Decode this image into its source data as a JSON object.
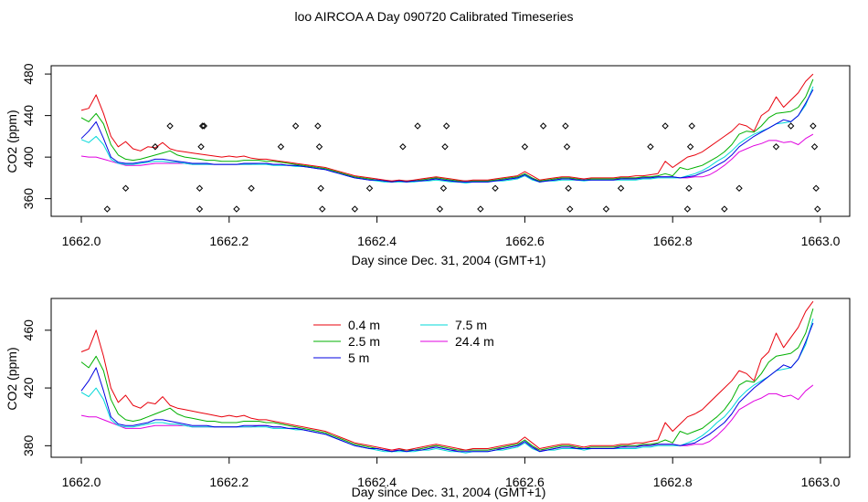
{
  "title": "loo AIRCOA A  Day 090720  Calibrated Timeseries",
  "chart_data": [
    {
      "type": "line",
      "xlabel": "Day since Dec. 31, 2004 (GMT+1)",
      "ylabel": "CO2 (ppm)",
      "xlim": [
        1662.0,
        1663.0
      ],
      "ylim": [
        343,
        488
      ],
      "xticks": [
        "1662.0",
        "1662.2",
        "1662.4",
        "1662.6",
        "1662.8",
        "1663.0"
      ],
      "yticks": [
        "360",
        "400",
        "440",
        "480"
      ],
      "series_ref": "shared",
      "diamond_markers": {
        "name": "",
        "x": [
          1662.035,
          1662.06,
          1662.1,
          1662.12,
          1662.16,
          1662.16,
          1662.162,
          1662.164,
          1662.166,
          1662.21,
          1662.23,
          1662.27,
          1662.29,
          1662.32,
          1662.322,
          1662.324,
          1662.326,
          1662.37,
          1662.39,
          1662.435,
          1662.455,
          1662.485,
          1662.49,
          1662.492,
          1662.494,
          1662.54,
          1662.56,
          1662.6,
          1662.625,
          1662.655,
          1662.657,
          1662.659,
          1662.661,
          1662.71,
          1662.73,
          1662.77,
          1662.79,
          1662.82,
          1662.822,
          1662.824,
          1662.826,
          1662.87,
          1662.89,
          1662.94,
          1662.96,
          1662.99,
          1662.992,
          1662.994,
          1662.996
        ],
        "y": [
          350,
          370,
          410,
          430,
          350,
          370,
          410,
          430,
          430,
          350,
          370,
          410,
          430,
          430,
          410,
          370,
          350,
          350,
          370,
          410,
          430,
          350,
          370,
          410,
          430,
          350,
          370,
          410,
          430,
          430,
          410,
          370,
          350,
          350,
          370,
          410,
          430,
          350,
          370,
          410,
          430,
          350,
          370,
          410,
          430,
          430,
          410,
          370,
          350
        ]
      }
    },
    {
      "type": "line",
      "xlabel": "Day since Dec. 31, 2004 (GMT+1)",
      "ylabel": "CO2 (ppm)",
      "xlim": [
        1662.0,
        1663.0
      ],
      "ylim": [
        372,
        482
      ],
      "xticks": [
        "1662.0",
        "1662.2",
        "1662.4",
        "1662.6",
        "1662.8",
        "1663.0"
      ],
      "yticks": [
        "380",
        "420",
        "460"
      ],
      "legend_placement": "top-center",
      "series_ref": "shared"
    }
  ],
  "series": [
    {
      "name": "0.4 m",
      "color": "#e8000b",
      "x": [
        1662.0,
        1662.01,
        1662.02,
        1662.03,
        1662.04,
        1662.05,
        1662.06,
        1662.07,
        1662.08,
        1662.09,
        1662.1,
        1662.11,
        1662.12,
        1662.13,
        1662.14,
        1662.15,
        1662.16,
        1662.17,
        1662.18,
        1662.19,
        1662.2,
        1662.21,
        1662.22,
        1662.23,
        1662.24,
        1662.25,
        1662.26,
        1662.27,
        1662.28,
        1662.29,
        1662.3,
        1662.31,
        1662.32,
        1662.33,
        1662.34,
        1662.35,
        1662.36,
        1662.37,
        1662.38,
        1662.39,
        1662.4,
        1662.41,
        1662.42,
        1662.43,
        1662.44,
        1662.45,
        1662.46,
        1662.47,
        1662.48,
        1662.49,
        1662.5,
        1662.51,
        1662.52,
        1662.53,
        1662.54,
        1662.55,
        1662.56,
        1662.57,
        1662.58,
        1662.59,
        1662.6,
        1662.61,
        1662.62,
        1662.63,
        1662.64,
        1662.65,
        1662.66,
        1662.67,
        1662.68,
        1662.69,
        1662.7,
        1662.71,
        1662.72,
        1662.73,
        1662.74,
        1662.75,
        1662.76,
        1662.77,
        1662.78,
        1662.79,
        1662.8,
        1662.81,
        1662.82,
        1662.83,
        1662.84,
        1662.85,
        1662.86,
        1662.87,
        1662.88,
        1662.89,
        1662.9,
        1662.91,
        1662.92,
        1662.93,
        1662.94,
        1662.95,
        1662.96,
        1662.97,
        1662.98,
        1662.99
      ],
      "y": [
        445,
        447,
        460,
        442,
        420,
        410,
        415,
        408,
        406,
        410,
        409,
        414,
        408,
        406,
        405,
        404,
        403,
        402,
        401,
        400,
        401,
        400,
        401,
        399,
        398,
        398,
        397,
        396,
        395,
        394,
        393,
        392,
        391,
        390,
        388,
        386,
        384,
        382,
        381,
        380,
        379,
        378,
        377,
        378,
        377,
        378,
        379,
        380,
        381,
        380,
        379,
        378,
        377,
        378,
        378,
        378,
        379,
        380,
        381,
        382,
        386,
        382,
        378,
        379,
        380,
        381,
        381,
        380,
        379,
        380,
        380,
        380,
        380,
        381,
        381,
        382,
        382,
        383,
        384,
        396,
        390,
        395,
        400,
        402,
        405,
        410,
        415,
        420,
        425,
        432,
        430,
        425,
        440,
        445,
        458,
        448,
        455,
        462,
        473,
        480
      ]
    },
    {
      "name": "2.5 m",
      "color": "#00b000",
      "x": [
        1662.0,
        1662.01,
        1662.02,
        1662.03,
        1662.04,
        1662.05,
        1662.06,
        1662.07,
        1662.08,
        1662.09,
        1662.1,
        1662.11,
        1662.12,
        1662.13,
        1662.14,
        1662.15,
        1662.16,
        1662.17,
        1662.18,
        1662.19,
        1662.2,
        1662.21,
        1662.22,
        1662.23,
        1662.24,
        1662.25,
        1662.26,
        1662.27,
        1662.28,
        1662.29,
        1662.3,
        1662.31,
        1662.32,
        1662.33,
        1662.34,
        1662.35,
        1662.36,
        1662.37,
        1662.38,
        1662.39,
        1662.4,
        1662.41,
        1662.42,
        1662.43,
        1662.44,
        1662.45,
        1662.46,
        1662.47,
        1662.48,
        1662.49,
        1662.5,
        1662.51,
        1662.52,
        1662.53,
        1662.54,
        1662.55,
        1662.56,
        1662.57,
        1662.58,
        1662.59,
        1662.6,
        1662.61,
        1662.62,
        1662.63,
        1662.64,
        1662.65,
        1662.66,
        1662.67,
        1662.68,
        1662.69,
        1662.7,
        1662.71,
        1662.72,
        1662.73,
        1662.74,
        1662.75,
        1662.76,
        1662.77,
        1662.78,
        1662.79,
        1662.8,
        1662.81,
        1662.82,
        1662.83,
        1662.84,
        1662.85,
        1662.86,
        1662.87,
        1662.88,
        1662.89,
        1662.9,
        1662.91,
        1662.92,
        1662.93,
        1662.94,
        1662.95,
        1662.96,
        1662.97,
        1662.98,
        1662.99
      ],
      "y": [
        438,
        434,
        442,
        432,
        412,
        402,
        398,
        397,
        398,
        400,
        402,
        404,
        406,
        402,
        400,
        399,
        398,
        397,
        397,
        396,
        396,
        396,
        397,
        397,
        397,
        396,
        396,
        395,
        394,
        393,
        392,
        391,
        390,
        389,
        387,
        385,
        383,
        381,
        380,
        379,
        378,
        377,
        376,
        377,
        377,
        377,
        378,
        379,
        380,
        379,
        378,
        377,
        377,
        377,
        377,
        377,
        378,
        379,
        380,
        381,
        384,
        380,
        377,
        378,
        379,
        380,
        380,
        379,
        378,
        379,
        379,
        379,
        379,
        380,
        380,
        380,
        381,
        381,
        382,
        384,
        382,
        390,
        388,
        390,
        392,
        396,
        400,
        405,
        412,
        422,
        425,
        424,
        430,
        438,
        442,
        443,
        444,
        448,
        458,
        475
      ]
    },
    {
      "name": "5 m",
      "color": "#0000e0",
      "x": [
        1662.0,
        1662.01,
        1662.02,
        1662.03,
        1662.04,
        1662.05,
        1662.06,
        1662.07,
        1662.08,
        1662.09,
        1662.1,
        1662.11,
        1662.12,
        1662.13,
        1662.14,
        1662.15,
        1662.16,
        1662.17,
        1662.18,
        1662.19,
        1662.2,
        1662.21,
        1662.22,
        1662.23,
        1662.24,
        1662.25,
        1662.26,
        1662.27,
        1662.28,
        1662.29,
        1662.3,
        1662.31,
        1662.32,
        1662.33,
        1662.34,
        1662.35,
        1662.36,
        1662.37,
        1662.38,
        1662.39,
        1662.4,
        1662.41,
        1662.42,
        1662.43,
        1662.44,
        1662.45,
        1662.46,
        1662.47,
        1662.48,
        1662.49,
        1662.5,
        1662.51,
        1662.52,
        1662.53,
        1662.54,
        1662.55,
        1662.56,
        1662.57,
        1662.58,
        1662.59,
        1662.6,
        1662.61,
        1662.62,
        1662.63,
        1662.64,
        1662.65,
        1662.66,
        1662.67,
        1662.68,
        1662.69,
        1662.7,
        1662.71,
        1662.72,
        1662.73,
        1662.74,
        1662.75,
        1662.76,
        1662.77,
        1662.78,
        1662.79,
        1662.8,
        1662.81,
        1662.82,
        1662.83,
        1662.84,
        1662.85,
        1662.86,
        1662.87,
        1662.88,
        1662.89,
        1662.9,
        1662.91,
        1662.92,
        1662.93,
        1662.94,
        1662.95,
        1662.96,
        1662.97,
        1662.98,
        1662.99
      ],
      "y": [
        418,
        425,
        434,
        418,
        400,
        395,
        394,
        394,
        395,
        396,
        398,
        398,
        397,
        396,
        395,
        394,
        394,
        394,
        393,
        393,
        393,
        393,
        394,
        394,
        394,
        394,
        393,
        393,
        392,
        392,
        391,
        390,
        389,
        388,
        386,
        384,
        382,
        380,
        379,
        378,
        378,
        377,
        376,
        377,
        376,
        377,
        377,
        378,
        379,
        378,
        377,
        376,
        376,
        376,
        376,
        376,
        377,
        378,
        379,
        380,
        383,
        379,
        376,
        377,
        378,
        379,
        379,
        378,
        378,
        378,
        378,
        378,
        378,
        379,
        379,
        379,
        380,
        380,
        381,
        381,
        381,
        380,
        381,
        382,
        385,
        388,
        392,
        396,
        402,
        410,
        415,
        420,
        424,
        428,
        432,
        436,
        434,
        440,
        452,
        465
      ]
    },
    {
      "name": "7.5 m",
      "color": "#00d8d8",
      "x": [
        1662.0,
        1662.01,
        1662.02,
        1662.03,
        1662.04,
        1662.05,
        1662.06,
        1662.07,
        1662.08,
        1662.09,
        1662.1,
        1662.11,
        1662.12,
        1662.13,
        1662.14,
        1662.15,
        1662.16,
        1662.17,
        1662.18,
        1662.19,
        1662.2,
        1662.21,
        1662.22,
        1662.23,
        1662.24,
        1662.25,
        1662.26,
        1662.27,
        1662.28,
        1662.29,
        1662.3,
        1662.31,
        1662.32,
        1662.33,
        1662.34,
        1662.35,
        1662.36,
        1662.37,
        1662.38,
        1662.39,
        1662.4,
        1662.41,
        1662.42,
        1662.43,
        1662.44,
        1662.45,
        1662.46,
        1662.47,
        1662.48,
        1662.49,
        1662.5,
        1662.51,
        1662.52,
        1662.53,
        1662.54,
        1662.55,
        1662.56,
        1662.57,
        1662.58,
        1662.59,
        1662.6,
        1662.61,
        1662.62,
        1662.63,
        1662.64,
        1662.65,
        1662.66,
        1662.67,
        1662.68,
        1662.69,
        1662.7,
        1662.71,
        1662.72,
        1662.73,
        1662.74,
        1662.75,
        1662.76,
        1662.77,
        1662.78,
        1662.79,
        1662.8,
        1662.81,
        1662.82,
        1662.83,
        1662.84,
        1662.85,
        1662.86,
        1662.87,
        1662.88,
        1662.89,
        1662.9,
        1662.91,
        1662.92,
        1662.93,
        1662.94,
        1662.95,
        1662.96,
        1662.97,
        1662.98,
        1662.99
      ],
      "y": [
        417,
        414,
        420,
        412,
        398,
        394,
        393,
        393,
        394,
        395,
        396,
        396,
        395,
        395,
        394,
        393,
        393,
        393,
        393,
        393,
        393,
        393,
        393,
        393,
        393,
        393,
        392,
        392,
        392,
        391,
        391,
        390,
        389,
        388,
        386,
        384,
        382,
        380,
        379,
        378,
        377,
        376,
        376,
        376,
        376,
        376,
        377,
        377,
        378,
        377,
        376,
        376,
        375,
        376,
        376,
        376,
        377,
        377,
        378,
        379,
        382,
        378,
        376,
        377,
        377,
        378,
        378,
        378,
        377,
        378,
        378,
        378,
        378,
        378,
        378,
        378,
        379,
        379,
        380,
        380,
        380,
        380,
        382,
        384,
        387,
        391,
        396,
        400,
        406,
        413,
        418,
        422,
        425,
        428,
        432,
        433,
        434,
        440,
        450,
        468
      ]
    },
    {
      "name": "24.4 m",
      "color": "#e000e0",
      "x": [
        1662.0,
        1662.01,
        1662.02,
        1662.03,
        1662.04,
        1662.05,
        1662.06,
        1662.07,
        1662.08,
        1662.09,
        1662.1,
        1662.11,
        1662.12,
        1662.13,
        1662.14,
        1662.15,
        1662.16,
        1662.17,
        1662.18,
        1662.19,
        1662.2,
        1662.21,
        1662.22,
        1662.23,
        1662.24,
        1662.25,
        1662.26,
        1662.27,
        1662.28,
        1662.29,
        1662.3,
        1662.31,
        1662.32,
        1662.33,
        1662.34,
        1662.35,
        1662.36,
        1662.37,
        1662.38,
        1662.39,
        1662.4,
        1662.41,
        1662.42,
        1662.43,
        1662.44,
        1662.45,
        1662.46,
        1662.47,
        1662.48,
        1662.49,
        1662.5,
        1662.51,
        1662.52,
        1662.53,
        1662.54,
        1662.55,
        1662.56,
        1662.57,
        1662.58,
        1662.59,
        1662.6,
        1662.61,
        1662.62,
        1662.63,
        1662.64,
        1662.65,
        1662.66,
        1662.67,
        1662.68,
        1662.69,
        1662.7,
        1662.71,
        1662.72,
        1662.73,
        1662.74,
        1662.75,
        1662.76,
        1662.77,
        1662.78,
        1662.79,
        1662.8,
        1662.81,
        1662.82,
        1662.83,
        1662.84,
        1662.85,
        1662.86,
        1662.87,
        1662.88,
        1662.89,
        1662.9,
        1662.91,
        1662.92,
        1662.93,
        1662.94,
        1662.95,
        1662.96,
        1662.97,
        1662.98,
        1662.99
      ],
      "y": [
        401,
        400,
        400,
        398,
        396,
        394,
        392,
        392,
        392,
        393,
        394,
        394,
        394,
        394,
        394,
        393,
        393,
        393,
        393,
        393,
        393,
        393,
        393,
        393,
        394,
        394,
        393,
        393,
        392,
        392,
        391,
        390,
        389,
        388,
        386,
        384,
        382,
        380,
        379,
        378,
        378,
        377,
        377,
        377,
        377,
        377,
        378,
        379,
        379,
        378,
        377,
        377,
        377,
        377,
        377,
        377,
        378,
        378,
        379,
        380,
        382,
        379,
        377,
        377,
        378,
        379,
        379,
        379,
        378,
        379,
        379,
        379,
        379,
        379,
        380,
        380,
        380,
        381,
        381,
        381,
        381,
        380,
        380,
        381,
        381,
        383,
        387,
        392,
        398,
        405,
        408,
        411,
        413,
        416,
        416,
        414,
        415,
        412,
        418,
        422
      ]
    }
  ]
}
